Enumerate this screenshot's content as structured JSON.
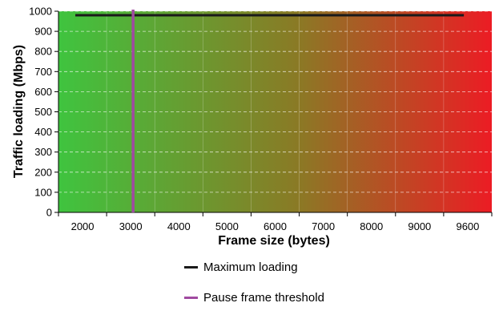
{
  "chart_data": {
    "type": "line",
    "xlabel": "Frame size (bytes)",
    "ylabel": "Traffic loading (Mbps)",
    "x_tick_labels": [
      "2000",
      "3000",
      "4000",
      "5000",
      "6000",
      "7000",
      "8000",
      "9000",
      "9600"
    ],
    "y_ticks": [
      0,
      100,
      200,
      300,
      400,
      500,
      600,
      700,
      800,
      900,
      1000
    ],
    "ylim": [
      0,
      1000
    ],
    "grid": true,
    "background_gradient": [
      "#3fc43f",
      "#8a7a25",
      "#ec1c24"
    ],
    "series": [
      {
        "name": "Maximum loading",
        "color": "#1a1a1a",
        "kind": "horizontal",
        "x": [
          "2000",
          "9600"
        ],
        "y": [
          980,
          980
        ]
      },
      {
        "name": "Pause frame threshold",
        "color": "#a04aa0",
        "kind": "vertical",
        "x": [
          "3000",
          "3000"
        ],
        "y": [
          0,
          1000
        ]
      }
    ],
    "legend_position": "bottom-center"
  }
}
